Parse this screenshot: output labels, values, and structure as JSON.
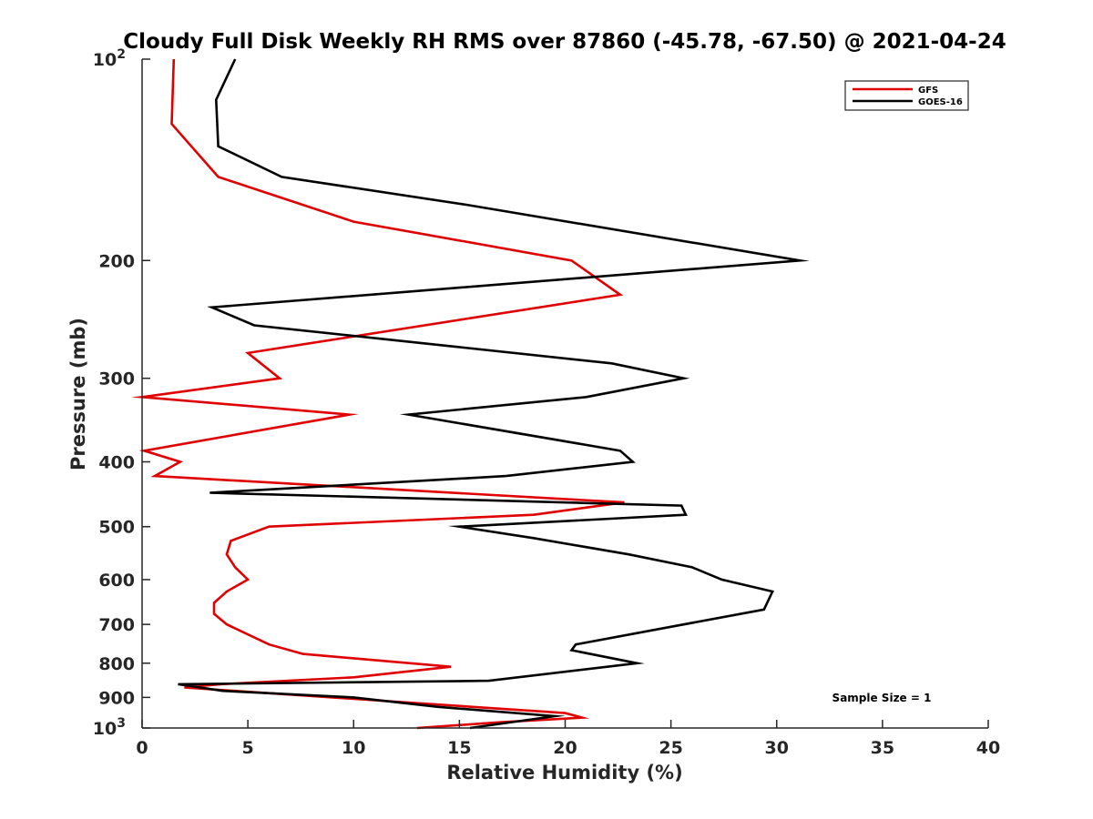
{
  "chart_data": {
    "type": "line",
    "title": "Cloudy Full Disk Weekly RH RMS over 87860 (-45.78, -67.50) @ 2021-04-24",
    "xlabel": "Relative Humidity (%)",
    "ylabel": "Pressure (mb)",
    "xlim": [
      0,
      40
    ],
    "ylim": [
      100,
      1000
    ],
    "y_scale": "log",
    "y_reversed": true,
    "x_ticks": [
      {
        "value": 0,
        "label": "0"
      },
      {
        "value": 5,
        "label": "5"
      },
      {
        "value": 10,
        "label": "10"
      },
      {
        "value": 15,
        "label": "15"
      },
      {
        "value": 20,
        "label": "20"
      },
      {
        "value": 25,
        "label": "25"
      },
      {
        "value": 30,
        "label": "30"
      },
      {
        "value": 35,
        "label": "35"
      },
      {
        "value": 40,
        "label": "40"
      }
    ],
    "y_ticks": [
      {
        "value": 100,
        "base": "10",
        "exp": "2"
      },
      {
        "value": 200,
        "label": "200"
      },
      {
        "value": 300,
        "label": "300"
      },
      {
        "value": 400,
        "label": "400"
      },
      {
        "value": 500,
        "label": "500"
      },
      {
        "value": 600,
        "label": "600"
      },
      {
        "value": 700,
        "label": "700"
      },
      {
        "value": 800,
        "label": "800"
      },
      {
        "value": 900,
        "label": "900"
      },
      {
        "value": 1000,
        "base": "10",
        "exp": "3"
      }
    ],
    "grid": false,
    "legend_position": "top-right",
    "annotation": "Sample Size = 1",
    "series": [
      {
        "name": "GFS",
        "color": "#e00000",
        "points": [
          [
            1.5,
            100
          ],
          [
            1.4,
            125
          ],
          [
            3.6,
            150
          ],
          [
            10.0,
            175
          ],
          [
            20.3,
            200
          ],
          [
            22.6,
            225
          ],
          [
            5.0,
            275
          ],
          [
            6.5,
            300
          ],
          [
            0.0,
            320
          ],
          [
            9.8,
            340
          ],
          [
            0.1,
            385
          ],
          [
            1.8,
            400
          ],
          [
            0.6,
            420
          ],
          [
            22.8,
            460
          ],
          [
            18.5,
            480
          ],
          [
            6.0,
            500
          ],
          [
            4.2,
            525
          ],
          [
            4.0,
            550
          ],
          [
            4.4,
            575
          ],
          [
            5.0,
            600
          ],
          [
            4.0,
            625
          ],
          [
            3.4,
            650
          ],
          [
            3.4,
            675
          ],
          [
            4.0,
            700
          ],
          [
            6.0,
            750
          ],
          [
            7.6,
            775
          ],
          [
            14.6,
            810
          ],
          [
            10.0,
            840
          ],
          [
            3.7,
            860
          ],
          [
            2.0,
            870
          ],
          [
            20.0,
            950
          ],
          [
            20.8,
            965
          ],
          [
            17.0,
            980
          ],
          [
            13.0,
            1000
          ]
        ]
      },
      {
        "name": "GOES-16",
        "color": "#000000",
        "points": [
          [
            4.4,
            100
          ],
          [
            3.5,
            115
          ],
          [
            3.6,
            135
          ],
          [
            6.6,
            150
          ],
          [
            15.3,
            165
          ],
          [
            31.1,
            200
          ],
          [
            3.3,
            235
          ],
          [
            5.3,
            250
          ],
          [
            22.2,
            285
          ],
          [
            25.6,
            300
          ],
          [
            21.0,
            320
          ],
          [
            12.6,
            340
          ],
          [
            22.6,
            385
          ],
          [
            23.2,
            400
          ],
          [
            17.2,
            420
          ],
          [
            3.2,
            445
          ],
          [
            25.5,
            465
          ],
          [
            25.7,
            480
          ],
          [
            15.0,
            500
          ],
          [
            18.5,
            520
          ],
          [
            23.0,
            550
          ],
          [
            26.0,
            575
          ],
          [
            27.4,
            600
          ],
          [
            29.8,
            625
          ],
          [
            29.4,
            665
          ],
          [
            20.5,
            750
          ],
          [
            20.3,
            765
          ],
          [
            23.4,
            800
          ],
          [
            16.4,
            850
          ],
          [
            1.7,
            860
          ],
          [
            3.8,
            880
          ],
          [
            10.0,
            900
          ],
          [
            14.0,
            930
          ],
          [
            19.5,
            960
          ],
          [
            15.5,
            1000
          ]
        ]
      }
    ]
  }
}
